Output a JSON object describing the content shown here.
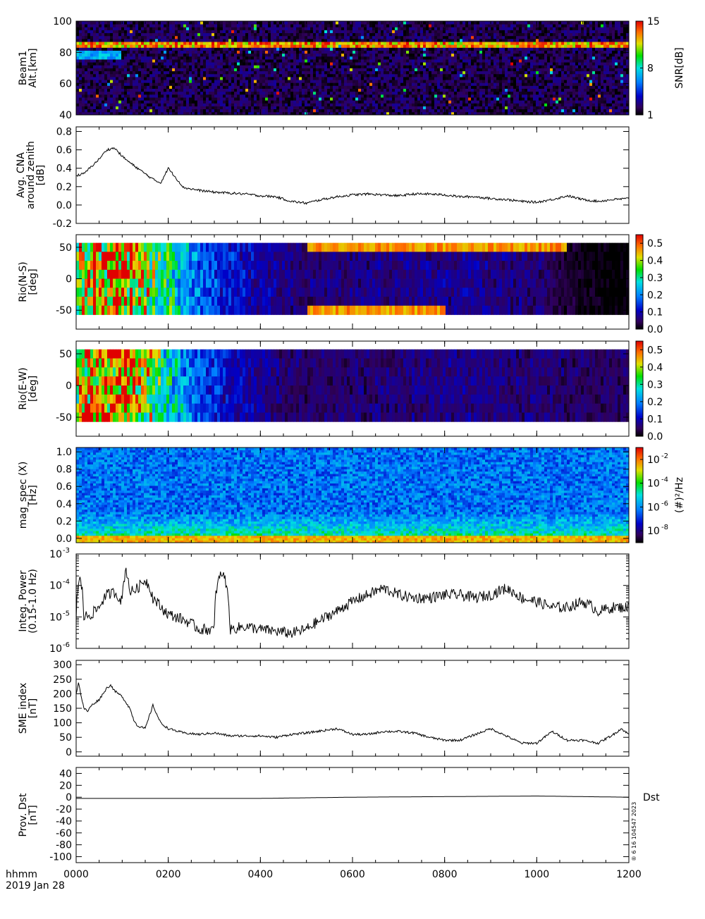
{
  "footer": {
    "time_label": "hhmm",
    "date_label": "2019 Jan 28"
  },
  "x_axis": {
    "range": [
      0,
      720
    ],
    "ticks": [
      {
        "v": 0,
        "label": "0000"
      },
      {
        "v": 120,
        "label": "0200"
      },
      {
        "v": 240,
        "label": "0400"
      },
      {
        "v": 360,
        "label": "0600"
      },
      {
        "v": 480,
        "label": "0800"
      },
      {
        "v": 600,
        "label": "1000"
      },
      {
        "v": 720,
        "label": "1200"
      }
    ]
  },
  "chart_data": [
    {
      "id": "beam1",
      "type": "heatmap",
      "ylabel": [
        "Beam1",
        "Alt.[km]"
      ],
      "ylim": [
        40,
        100
      ],
      "yticks": [
        40,
        60,
        80,
        100
      ],
      "colorbar": {
        "label": "SNR[dB]",
        "ticks": [
          1,
          8,
          15
        ],
        "range": [
          1,
          15
        ]
      },
      "features": [
        {
          "name": "echo band",
          "x_range": [
            0,
            720
          ],
          "y": 85,
          "level": 15
        },
        {
          "name": "lower echo",
          "x_range": [
            0,
            60
          ],
          "y": 78,
          "level": 8
        }
      ],
      "background_level": 2
    },
    {
      "id": "cna",
      "type": "line",
      "ylabel": [
        "Avg. CNA",
        "around zenith",
        "[dB]"
      ],
      "ylim": [
        -0.2,
        0.85
      ],
      "yticks": [
        -0.2,
        0.0,
        0.2,
        0.4,
        0.6,
        0.8
      ],
      "x": [
        0,
        10,
        20,
        30,
        40,
        50,
        60,
        70,
        80,
        90,
        100,
        110,
        120,
        140,
        160,
        180,
        200,
        220,
        240,
        260,
        280,
        300,
        320,
        340,
        360,
        380,
        400,
        420,
        440,
        460,
        480,
        500,
        520,
        540,
        560,
        580,
        600,
        620,
        640,
        660,
        680,
        700,
        720
      ],
      "y": [
        0.32,
        0.34,
        0.42,
        0.5,
        0.6,
        0.62,
        0.53,
        0.46,
        0.4,
        0.34,
        0.28,
        0.24,
        0.4,
        0.19,
        0.16,
        0.14,
        0.13,
        0.12,
        0.1,
        0.09,
        0.04,
        0.02,
        0.06,
        0.09,
        0.11,
        0.12,
        0.11,
        0.1,
        0.12,
        0.12,
        0.11,
        0.09,
        0.09,
        0.07,
        0.06,
        0.04,
        0.03,
        0.06,
        0.1,
        0.06,
        0.04,
        0.06,
        0.07
      ]
    },
    {
      "id": "rio_ns",
      "type": "heatmap",
      "ylabel": [
        "Rio(N-S)",
        "[deg]"
      ],
      "ylim": [
        -80,
        70
      ],
      "yticks": [
        -50,
        0,
        50
      ],
      "colorbar": {
        "ticks": [
          0.0,
          0.1,
          0.2,
          0.3,
          0.4,
          0.5
        ],
        "range": [
          0,
          0.55
        ]
      },
      "data_extent": [
        -57,
        57
      ],
      "time_profile": {
        "x": [
          0,
          30,
          60,
          90,
          120,
          150,
          200,
          270,
          300,
          400,
          500,
          600,
          660,
          720
        ],
        "level": [
          0.38,
          0.45,
          0.5,
          0.4,
          0.3,
          0.2,
          0.12,
          0.07,
          0.06,
          0.07,
          0.08,
          0.06,
          0.01,
          0.0
        ]
      },
      "features": [
        {
          "name": "top band",
          "x_range": [
            300,
            640
          ],
          "y": 52,
          "level": 0.5
        },
        {
          "name": "bottom band",
          "x_range": [
            300,
            480
          ],
          "y": -50,
          "level": 0.5
        }
      ]
    },
    {
      "id": "rio_ew",
      "type": "heatmap",
      "ylabel": [
        "Rio(E-W)",
        "[deg]"
      ],
      "ylim": [
        -80,
        70
      ],
      "yticks": [
        -50,
        0,
        50
      ],
      "colorbar": {
        "ticks": [
          0.0,
          0.1,
          0.2,
          0.3,
          0.4,
          0.5
        ],
        "range": [
          0,
          0.55
        ]
      },
      "data_extent": [
        -57,
        57
      ],
      "time_profile": {
        "x": [
          0,
          30,
          60,
          90,
          120,
          150,
          200,
          270,
          300,
          400,
          500,
          600,
          660,
          720
        ],
        "level": [
          0.42,
          0.5,
          0.52,
          0.4,
          0.28,
          0.18,
          0.1,
          0.06,
          0.05,
          0.06,
          0.07,
          0.06,
          0.05,
          0.05
        ]
      }
    },
    {
      "id": "mag_spec",
      "type": "heatmap",
      "ylabel": [
        "mag_spec (X)",
        "[Hz]"
      ],
      "ylim": [
        -0.05,
        1.05
      ],
      "yticks": [
        0.0,
        0.2,
        0.4,
        0.6,
        0.8,
        1.0
      ],
      "colorbar": {
        "label": "(#)²/Hz",
        "tick_exponents": [
          -2,
          -4,
          -6,
          -8
        ],
        "log_range": [
          -9,
          -1
        ]
      },
      "background_log_level": -6.3
    },
    {
      "id": "integ_power",
      "type": "line",
      "yscale": "log",
      "ylabel": [
        "Integ. Power",
        "(0.15-1.0 Hz)"
      ],
      "ylim_exp": [
        -6,
        -3
      ],
      "ytick_exponents": [
        -6,
        -5,
        -4,
        -3
      ],
      "x": [
        0,
        5,
        10,
        20,
        30,
        40,
        50,
        60,
        65,
        70,
        80,
        90,
        100,
        110,
        120,
        140,
        160,
        180,
        190,
        200,
        220,
        240,
        280,
        300,
        320,
        340,
        360,
        380,
        400,
        420,
        440,
        460,
        480,
        500,
        520,
        540,
        560,
        580,
        600,
        620,
        640,
        660,
        680,
        700,
        720
      ],
      "y": [
        1e-05,
        0.00015,
        1e-05,
        1.2e-05,
        2e-05,
        5e-05,
        6e-05,
        3e-05,
        0.0003,
        6e-05,
        8e-05,
        0.00015,
        4e-05,
        2e-05,
        1.2e-05,
        8e-06,
        4e-06,
        4e-06,
        0.00025,
        4e-06,
        5e-06,
        4e-06,
        3e-06,
        4e-06,
        8e-06,
        1.5e-05,
        3e-05,
        5e-05,
        8e-05,
        5e-05,
        4e-05,
        4e-05,
        5e-05,
        5e-05,
        4e-05,
        5e-05,
        8e-05,
        4e-05,
        3e-05,
        2e-05,
        2e-05,
        3e-05,
        1.5e-05,
        2e-05,
        2e-05
      ]
    },
    {
      "id": "sme",
      "type": "line",
      "ylabel": [
        "SME index",
        "[nT]"
      ],
      "ylim": [
        -15,
        315
      ],
      "yticks": [
        0,
        50,
        100,
        150,
        200,
        250,
        300
      ],
      "x": [
        0,
        3,
        6,
        10,
        15,
        20,
        30,
        40,
        45,
        50,
        60,
        70,
        75,
        80,
        90,
        100,
        110,
        120,
        140,
        160,
        180,
        200,
        240,
        260,
        280,
        300,
        340,
        360,
        380,
        400,
        420,
        440,
        460,
        480,
        500,
        520,
        540,
        560,
        580,
        600,
        620,
        640,
        660,
        680,
        700,
        710,
        720
      ],
      "y": [
        200,
        240,
        200,
        150,
        140,
        160,
        180,
        220,
        230,
        210,
        190,
        150,
        110,
        90,
        80,
        160,
        100,
        80,
        65,
        60,
        65,
        55,
        55,
        50,
        60,
        65,
        80,
        60,
        60,
        70,
        70,
        65,
        50,
        40,
        40,
        60,
        80,
        55,
        30,
        30,
        70,
        40,
        40,
        30,
        60,
        80,
        60
      ]
    },
    {
      "id": "dst",
      "type": "line",
      "ylabel": [
        "Prov. Dst",
        "[nT]"
      ],
      "ylim": [
        -110,
        50
      ],
      "yticks": [
        -100,
        -80,
        -60,
        -40,
        -20,
        0,
        20,
        40
      ],
      "x": [
        0,
        120,
        240,
        360,
        480,
        600,
        720
      ],
      "y": [
        -2,
        -2,
        -2,
        0,
        1,
        2,
        0
      ],
      "annotation": "Dst",
      "timestamp": "® 6 16 104547 2023"
    }
  ],
  "colors": {
    "axis": "#000000",
    "background": "#ffffff",
    "line": "#000000"
  }
}
